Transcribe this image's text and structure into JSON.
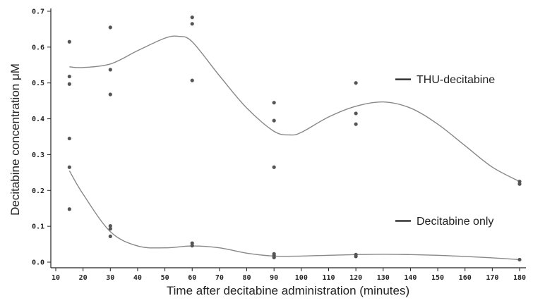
{
  "chart_data": {
    "type": "scatter",
    "title": "",
    "xlabel": "Time after decitabine administration (minutes)",
    "ylabel": "Decitabine concentration μM",
    "xlim": [
      10,
      180
    ],
    "ylim": [
      0.0,
      0.7
    ],
    "xticks": [
      10,
      20,
      30,
      40,
      50,
      60,
      70,
      80,
      90,
      100,
      110,
      120,
      130,
      140,
      150,
      160,
      170,
      180
    ],
    "xtick_labels": [
      "10",
      "20",
      "30",
      "40",
      "50",
      "60",
      "70",
      "80",
      "90",
      "100",
      "110",
      "120",
      "130",
      "140",
      "150",
      "160",
      "170",
      "180"
    ],
    "yticks": [
      0.0,
      0.1,
      0.2,
      0.3,
      0.4,
      0.5,
      0.6,
      0.7
    ],
    "ytick_labels": [
      "0.0",
      "0.1",
      "0.2",
      "0.3",
      "0.4",
      "0.5",
      "0.6",
      "0.7"
    ],
    "grid": false,
    "series": [
      {
        "name": "THU-decitabine",
        "color": "#555555",
        "points": [
          [
            15,
            0.615
          ],
          [
            15,
            0.518
          ],
          [
            15,
            0.497
          ],
          [
            15,
            0.345
          ],
          [
            15,
            0.265
          ],
          [
            30,
            0.655
          ],
          [
            30,
            0.537
          ],
          [
            30,
            0.468
          ],
          [
            60,
            0.683
          ],
          [
            60,
            0.665
          ],
          [
            60,
            0.507
          ],
          [
            90,
            0.445
          ],
          [
            90,
            0.395
          ],
          [
            90,
            0.265
          ],
          [
            120,
            0.5
          ],
          [
            120,
            0.415
          ],
          [
            120,
            0.385
          ],
          [
            180,
            0.225
          ],
          [
            180,
            0.218
          ]
        ],
        "fit": [
          [
            15,
            0.545
          ],
          [
            20,
            0.543
          ],
          [
            30,
            0.553
          ],
          [
            40,
            0.59
          ],
          [
            50,
            0.625
          ],
          [
            55,
            0.63
          ],
          [
            60,
            0.615
          ],
          [
            70,
            0.52
          ],
          [
            80,
            0.43
          ],
          [
            90,
            0.365
          ],
          [
            96,
            0.355
          ],
          [
            100,
            0.362
          ],
          [
            110,
            0.405
          ],
          [
            120,
            0.435
          ],
          [
            130,
            0.447
          ],
          [
            140,
            0.43
          ],
          [
            150,
            0.385
          ],
          [
            160,
            0.325
          ],
          [
            170,
            0.265
          ],
          [
            180,
            0.225
          ]
        ]
      },
      {
        "name": "Decitabine only",
        "color": "#555555",
        "points": [
          [
            15,
            0.148
          ],
          [
            30,
            0.101
          ],
          [
            30,
            0.093
          ],
          [
            30,
            0.072
          ],
          [
            60,
            0.053
          ],
          [
            60,
            0.046
          ],
          [
            90,
            0.023
          ],
          [
            90,
            0.018
          ],
          [
            90,
            0.013
          ],
          [
            120,
            0.021
          ],
          [
            120,
            0.016
          ],
          [
            180,
            0.007
          ]
        ],
        "fit": [
          [
            15,
            0.255
          ],
          [
            20,
            0.19
          ],
          [
            30,
            0.085
          ],
          [
            40,
            0.045
          ],
          [
            50,
            0.04
          ],
          [
            60,
            0.045
          ],
          [
            70,
            0.04
          ],
          [
            80,
            0.025
          ],
          [
            90,
            0.017
          ],
          [
            100,
            0.017
          ],
          [
            110,
            0.019
          ],
          [
            120,
            0.021
          ],
          [
            130,
            0.022
          ],
          [
            140,
            0.021
          ],
          [
            150,
            0.019
          ],
          [
            160,
            0.016
          ],
          [
            170,
            0.012
          ],
          [
            180,
            0.007
          ]
        ]
      }
    ],
    "legend": [
      {
        "label": "THU-decitabine",
        "value": 0.51
      },
      {
        "label": "Decitabine only",
        "value": 0.115
      }
    ]
  }
}
